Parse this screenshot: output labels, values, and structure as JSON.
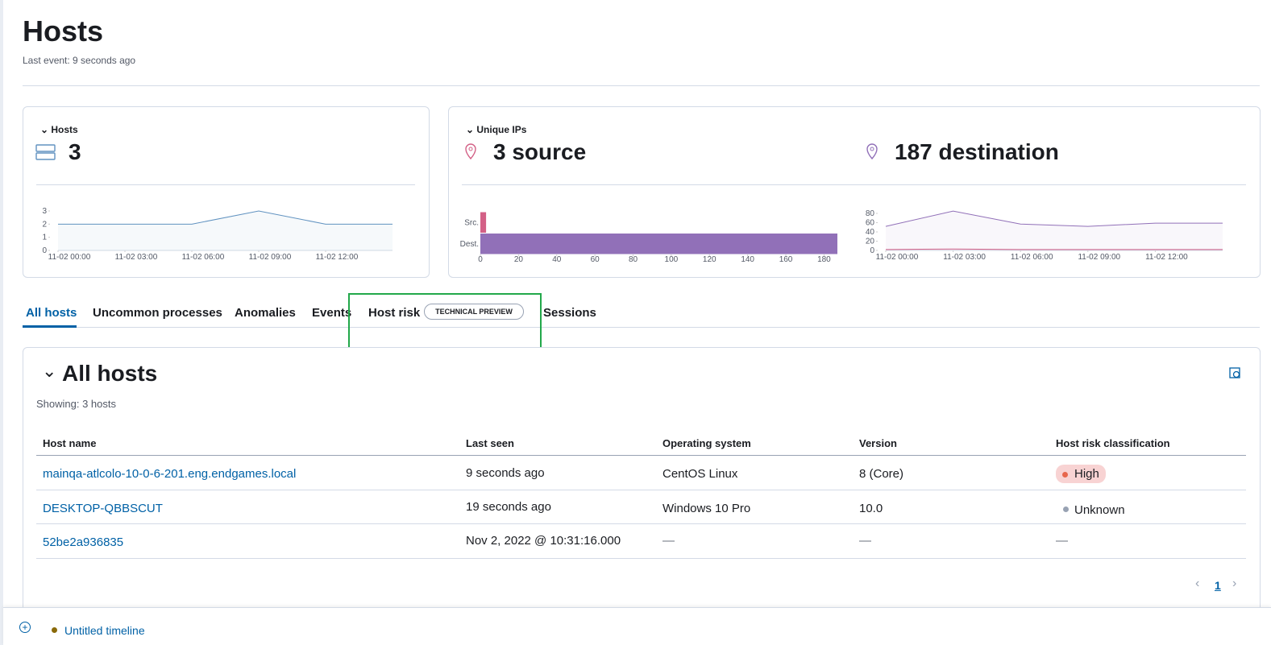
{
  "header": {
    "title": "Hosts",
    "subtitle": "Last event: 9 seconds ago"
  },
  "hosts_panel": {
    "label": "Hosts",
    "count": "3",
    "chart": {
      "type": "area",
      "x": [
        0,
        3,
        6,
        9,
        12,
        15
      ],
      "values": [
        2,
        2,
        2,
        3,
        2,
        2
      ],
      "color": "#6092c0",
      "xlim": [
        0,
        15
      ],
      "ylim": [
        0,
        3
      ],
      "yticks": [
        0,
        1,
        2,
        3
      ],
      "xticks": [
        {
          "value": 0,
          "label": "11-02 00:00"
        },
        {
          "value": 3,
          "label": "11-02 03:00"
        },
        {
          "value": 6,
          "label": "11-02 06:00"
        },
        {
          "value": 9,
          "label": "11-02 09:00"
        },
        {
          "value": 12,
          "label": "11-02 12:00"
        }
      ]
    }
  },
  "ips_panel": {
    "label": "Unique IPs",
    "source": "3 source",
    "destination": "187 destination",
    "bar_chart": {
      "type": "bar",
      "orientation": "horizontal",
      "categories": [
        "Src.",
        "Dest."
      ],
      "values": [
        3,
        187
      ],
      "colors": [
        "#d36086",
        "#9170b8"
      ],
      "xlim": [
        0,
        187
      ],
      "xticks": [
        0,
        20,
        40,
        60,
        80,
        100,
        120,
        140,
        160,
        180
      ]
    },
    "area_chart": {
      "type": "area",
      "x": [
        0,
        3,
        6,
        9,
        12,
        15
      ],
      "series": [
        {
          "color": "#d36086",
          "values": [
            2,
            3,
            2,
            2,
            2,
            2
          ]
        },
        {
          "color": "#9170b8",
          "values": [
            52,
            85,
            57,
            52,
            59,
            59
          ]
        }
      ],
      "xlim": [
        0,
        15
      ],
      "ylim": [
        0,
        90
      ],
      "yticks": [
        0,
        20,
        40,
        60,
        80
      ],
      "xticks": [
        {
          "value": 0,
          "label": "11-02 00:00"
        },
        {
          "value": 3,
          "label": "11-02 03:00"
        },
        {
          "value": 6,
          "label": "11-02 06:00"
        },
        {
          "value": 9,
          "label": "11-02 09:00"
        },
        {
          "value": 12,
          "label": "11-02 12:00"
        }
      ]
    }
  },
  "tabs": [
    "All hosts",
    "Uncommon processes",
    "Anomalies",
    "Events",
    "Host risk",
    "Sessions"
  ],
  "tab_badge": "TECHNICAL PREVIEW",
  "section": {
    "title": "All hosts",
    "showing": "Showing: 3 hosts"
  },
  "table": {
    "columns": [
      "Host name",
      "Last seen",
      "Operating system",
      "Version",
      "Host risk classification"
    ],
    "rows": [
      [
        "mainqa-atlcolo-10-0-6-201.eng.endgames.local",
        "9 seconds ago",
        "CentOS Linux",
        "8 (Core)",
        "High"
      ],
      [
        "DESKTOP-QBBSCUT",
        "19 seconds ago",
        "Windows 10 Pro",
        "10.0",
        "Unknown"
      ],
      [
        "52be2a936835",
        "Nov 2, 2022 @ 10:31:16.000",
        "—",
        "—",
        "—"
      ]
    ]
  },
  "pagination": {
    "page": "1"
  },
  "timeline": {
    "label": "Untitled timeline"
  }
}
